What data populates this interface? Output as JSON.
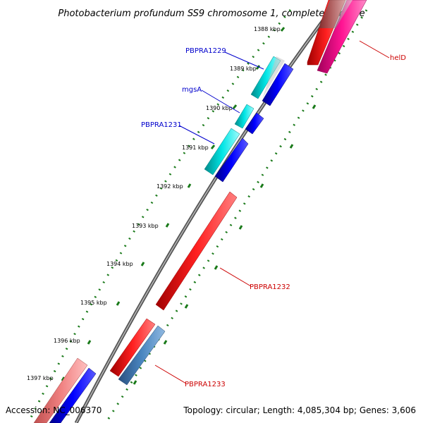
{
  "title": "Photobacterium profundum SS9 chromosome 1, complete genome",
  "footer": {
    "accession": "Accession: NC_006370",
    "topology": "Topology: circular; Length: 4,085,304 bp; Genes: 3,606"
  },
  "ticks": [
    "1388 kbp",
    "1389 kbp",
    "1390 kbp",
    "1391 kbp",
    "1392 kbp",
    "1393 kbp",
    "1394 kbp",
    "1395 kbp",
    "1396 kbp",
    "1397 kbp"
  ],
  "genes": [
    {
      "name": "helD",
      "color": "#ff0000",
      "label_color": "#cc0000"
    },
    {
      "name": "PBPRA1229",
      "color": "#00e5e5",
      "label_color": "#0000cc"
    },
    {
      "name": "mgsA",
      "color": "#00c8c8",
      "label_color": "#0000cc"
    },
    {
      "name": "PBPRA1231",
      "color": "#00c0c0",
      "label_color": "#0000cc"
    },
    {
      "name": "PBPRA1232",
      "color": "#ff0000",
      "label_color": "#cc0000"
    },
    {
      "name": "PBPRA1233",
      "color": "#4a86c0",
      "label_color": "#cc0000"
    }
  ],
  "colors": {
    "backbone": "#707070",
    "tick_green": "#1a7a1a",
    "forward_blue": "#0000ff",
    "magenta": "#ff1493",
    "pink": "#f08080"
  }
}
